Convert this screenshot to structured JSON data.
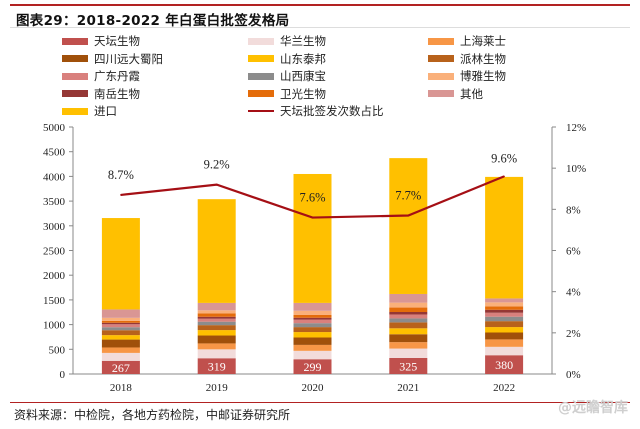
{
  "header": {
    "title": "图表29：2018-2022 年白蛋白批签发格局"
  },
  "footer": {
    "source": "资料来源：中检院，各地方药检院，中邮证券研究所",
    "watermark": "@远瞻智库"
  },
  "chart_data": {
    "type": "bar",
    "stacked": true,
    "title": "图表29：2018-2022 年白蛋白批签发格局",
    "categories": [
      "2018",
      "2019",
      "2020",
      "2021",
      "2022"
    ],
    "ylim": [
      0,
      5000
    ],
    "yticks": [
      "0",
      "500",
      "1000",
      "1500",
      "2000",
      "2500",
      "3000",
      "3500",
      "4000",
      "4500",
      "5000"
    ],
    "y2lim": [
      0,
      12
    ],
    "y2ticks": [
      "0%",
      "2%",
      "4%",
      "6%",
      "8%",
      "10%",
      "12%"
    ],
    "legend_position": "top",
    "grid": false,
    "series": [
      {
        "name": "天坛生物",
        "color": "#c0504d",
        "values": [
          267,
          319,
          299,
          325,
          380
        ],
        "labels": [
          "267",
          "319",
          "299",
          "325",
          "380"
        ]
      },
      {
        "name": "华兰生物",
        "color": "#f2dcdb",
        "values": [
          160,
          180,
          170,
          190,
          170
        ]
      },
      {
        "name": "上海莱士",
        "color": "#f79646",
        "values": [
          110,
          120,
          120,
          130,
          150
        ]
      },
      {
        "name": "四川远大蜀阳",
        "color": "#a0500a",
        "values": [
          160,
          160,
          150,
          160,
          140
        ]
      },
      {
        "name": "山东泰邦",
        "color": "#ffc000",
        "values": [
          90,
          110,
          110,
          120,
          110
        ]
      },
      {
        "name": "派林生物",
        "color": "#b8621b",
        "values": [
          100,
          100,
          100,
          120,
          120
        ]
      },
      {
        "name": "山西康宝",
        "color": "#8c8c8c",
        "values": [
          60,
          70,
          80,
          80,
          90
        ]
      },
      {
        "name": "广东丹霞",
        "color": "#d9807d",
        "values": [
          60,
          60,
          70,
          80,
          80
        ]
      },
      {
        "name": "南岳生物",
        "color": "#953735",
        "values": [
          30,
          40,
          40,
          50,
          60
        ]
      },
      {
        "name": "卫光生物",
        "color": "#e46c0a",
        "values": [
          40,
          70,
          60,
          90,
          70
        ]
      },
      {
        "name": "博雅生物",
        "color": "#fab07a",
        "values": [
          60,
          60,
          80,
          100,
          80
        ]
      },
      {
        "name": "其他",
        "color": "#d99694",
        "values": [
          170,
          150,
          160,
          175,
          80
        ]
      },
      {
        "name": "进口",
        "color": "#ffc000",
        "values": [
          1850,
          2100,
          2610,
          2750,
          2460
        ]
      }
    ],
    "line": {
      "name": "天坛批签发次数占比",
      "color": "#a50f15",
      "axis": "right",
      "values": [
        8.7,
        9.2,
        7.6,
        7.7,
        9.6
      ],
      "labels": [
        "8.7%",
        "9.2%",
        "7.6%",
        "7.7%",
        "9.6%"
      ]
    }
  }
}
